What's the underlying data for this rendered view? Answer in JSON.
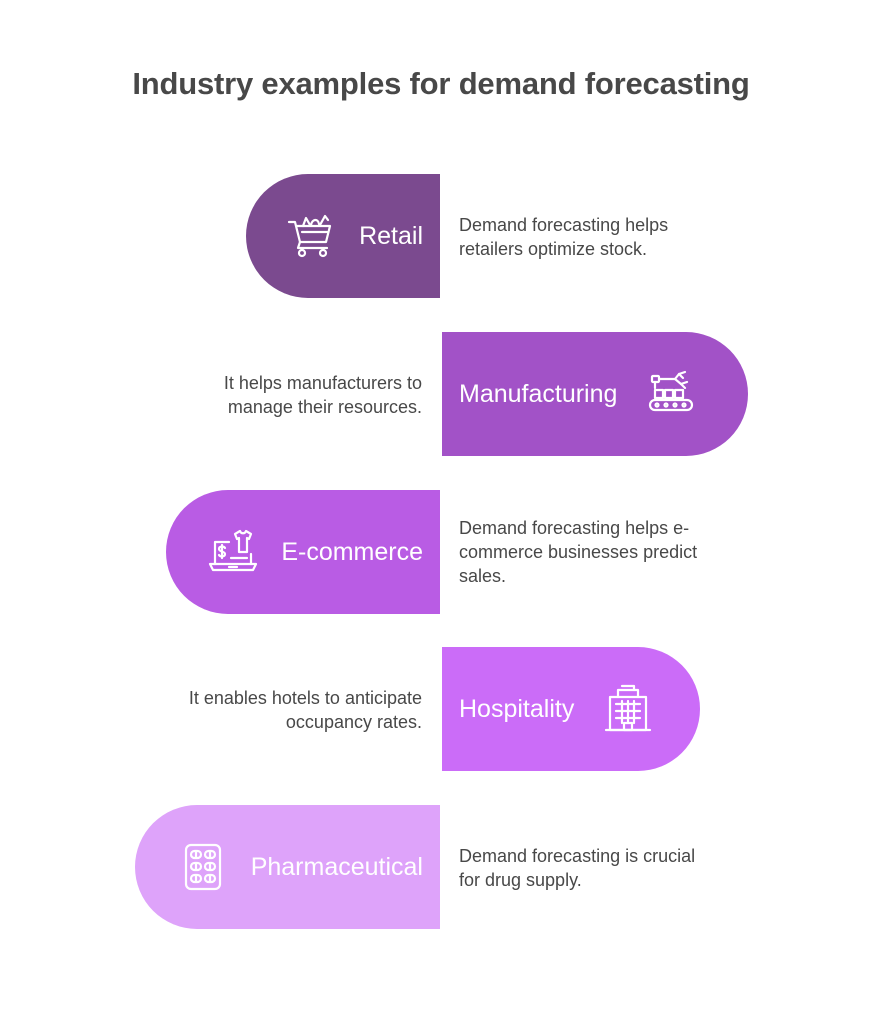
{
  "title": "Industry examples for demand forecasting",
  "items": [
    {
      "label": "Retail",
      "description_lines": [
        "Demand forecasting helps",
        "retailers optimize stock."
      ],
      "color": "#7b4a8f",
      "icon": "shopping-cart-icon"
    },
    {
      "label": "Manufacturing",
      "description_lines": [
        "It helps manufacturers to",
        "manage their resources."
      ],
      "color": "#a252c7",
      "icon": "robotic-arm-conveyor-icon"
    },
    {
      "label": "E-commerce",
      "description_lines": [
        "Demand forecasting helps e-",
        "commerce businesses predict",
        "sales."
      ],
      "color": "#b95ce4",
      "icon": "laptop-shopping-icon"
    },
    {
      "label": "Hospitality",
      "description_lines": [
        "It enables hotels to anticipate",
        "occupancy rates."
      ],
      "color": "#cb6cf8",
      "icon": "hotel-building-icon"
    },
    {
      "label": "Pharmaceutical",
      "description_lines": [
        "Demand forecasting is crucial",
        "for drug supply."
      ],
      "color": "#dea3fa",
      "icon": "pill-blister-pack-icon"
    }
  ]
}
